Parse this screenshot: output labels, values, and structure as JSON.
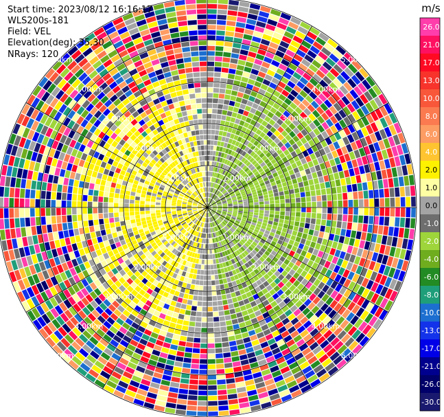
{
  "header": {
    "start_time": "Start time: 2023/08/12 16:16:17",
    "instrument": "WLS200s-181",
    "field": "Field: VEL",
    "elevation": "Elevation(deg): 35.30",
    "nrays": "NRays: 120"
  },
  "chart_data": {
    "type": "heatmap",
    "projection": "polar PPI scan",
    "field": "VEL",
    "units": "m/s",
    "n_rays": 120,
    "elevation_deg": 35.3,
    "range_rings_km": [
      1,
      2,
      3,
      4,
      5
    ],
    "ring_labels": [
      "1.00km",
      "2.00km",
      "3.00km",
      "4.00km",
      "5.00km"
    ],
    "colorbar": {
      "unit_label": "m/s",
      "ticks": [
        "26.0",
        "21.0",
        "17.0",
        "13.0",
        "10.0",
        "8.0",
        "6.0",
        "4.0",
        "2.0",
        "1.0",
        "0.0",
        "-1.0",
        "-2.0",
        "-4.0",
        "-6.0",
        "-8.0",
        "-10.0",
        "-13.0",
        "-17.0",
        "-21.0",
        "-26.0",
        "-30.0"
      ],
      "colors": [
        "#ff3dab",
        "#ff1060",
        "#ff0a22",
        "#f7332b",
        "#f9573a",
        "#fb7a4f",
        "#fd9c63",
        "#ffc430",
        "#fff200",
        "#ffffa4",
        "#a4a4a4",
        "#6e6e6e",
        "#9ed53a",
        "#6fad1f",
        "#238b23",
        "#1f9e7a",
        "#1c6fd0",
        "#1333ea",
        "#0000e8",
        "#00008e",
        "#00006a",
        "#191970"
      ]
    },
    "observed_pattern": {
      "near_range_to_3km": "mostly yellow (+1 to +2 m/s) on the west half, green (-1 to -2 m/s) on the east half, gray (~0) along north-south axis",
      "far_range_3_to_5km": "noisy multicolor speckle across full scale"
    },
    "grid": true
  }
}
